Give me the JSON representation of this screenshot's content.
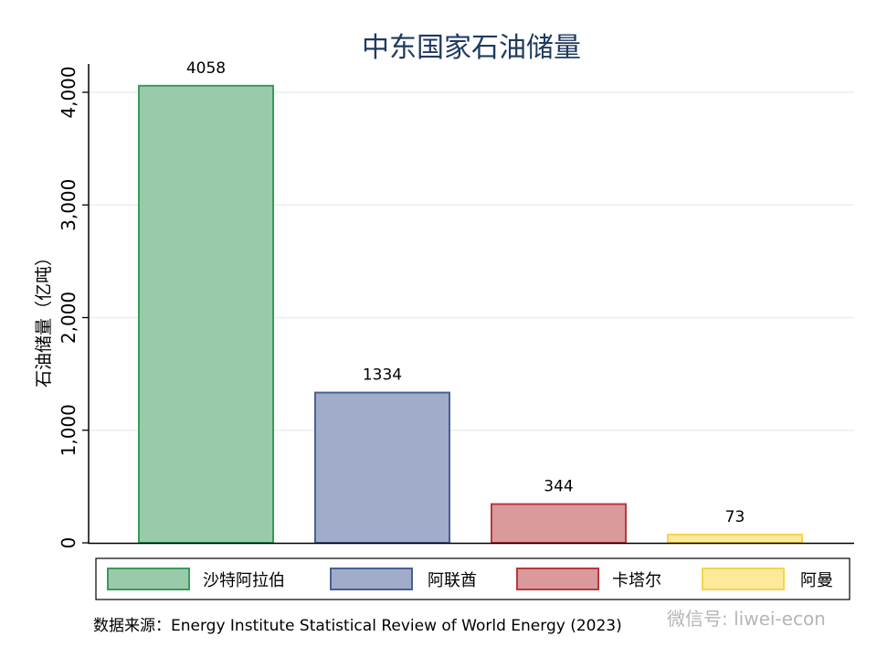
{
  "chart_data": {
    "type": "bar",
    "title": "中东国家石油储量",
    "xlabel": "",
    "ylabel": "石油储量（亿吨）",
    "ylim": [
      0,
      4300
    ],
    "yticks": [
      0,
      1000,
      2000,
      3000,
      4000
    ],
    "ytick_labels": [
      "0",
      "1,000",
      "2,000",
      "3,000",
      "4,000"
    ],
    "grid": true,
    "categories": [
      "沙特阿拉伯",
      "阿联酋",
      "卡塔尔",
      "阿曼"
    ],
    "values": [
      4058,
      1334,
      344,
      73
    ],
    "data_labels": [
      "4058",
      "1334",
      "344",
      "73"
    ],
    "fill_colors": [
      "#99cbab",
      "#a1acca",
      "#da9a9c",
      "#fde99a"
    ],
    "stroke_colors": [
      "#3a9a5a",
      "#4a5f98",
      "#b8393e",
      "#f5d54a"
    ],
    "legend_placement": "bottom",
    "source": "数据来源：Energy Institute Statistical Review of World Energy (2023)",
    "watermark": "微信号: liwei-econ"
  }
}
